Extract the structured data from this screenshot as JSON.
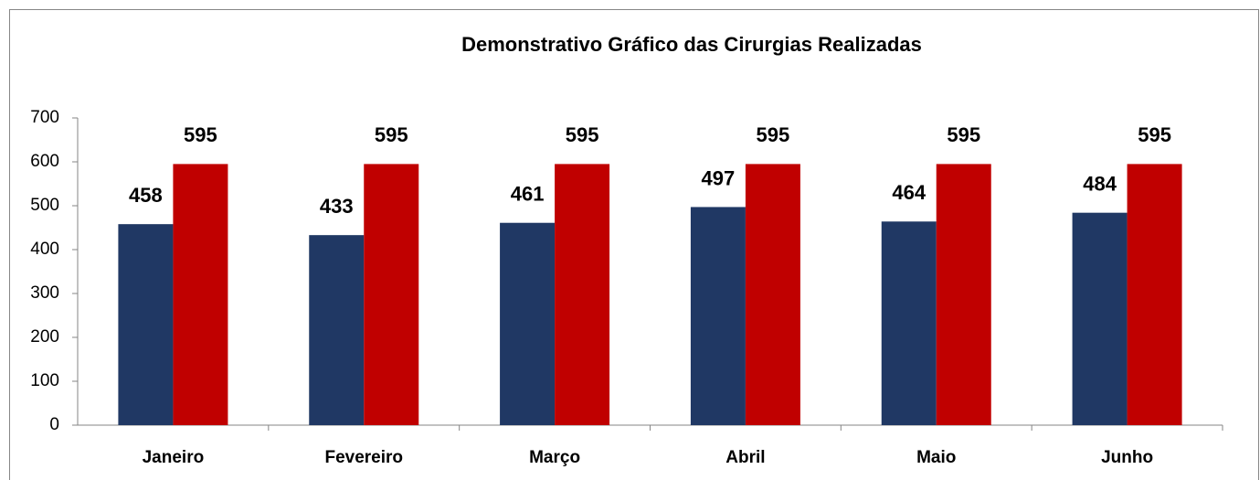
{
  "chart_data": {
    "type": "bar",
    "title": "Demonstrativo Gráfico das Cirurgias Realizadas",
    "categories": [
      "Janeiro",
      "Fevereiro",
      "Março",
      "Abril",
      "Maio",
      "Junho"
    ],
    "series": [
      {
        "color": "#203864",
        "values": [
          458,
          433,
          461,
          497,
          464,
          484
        ]
      },
      {
        "color": "#c00000",
        "values": [
          595,
          595,
          595,
          595,
          595,
          595
        ]
      }
    ],
    "ylim": [
      0,
      700
    ],
    "yticks": [
      0,
      100,
      200,
      300,
      400,
      500,
      600,
      700
    ],
    "grid": false
  }
}
